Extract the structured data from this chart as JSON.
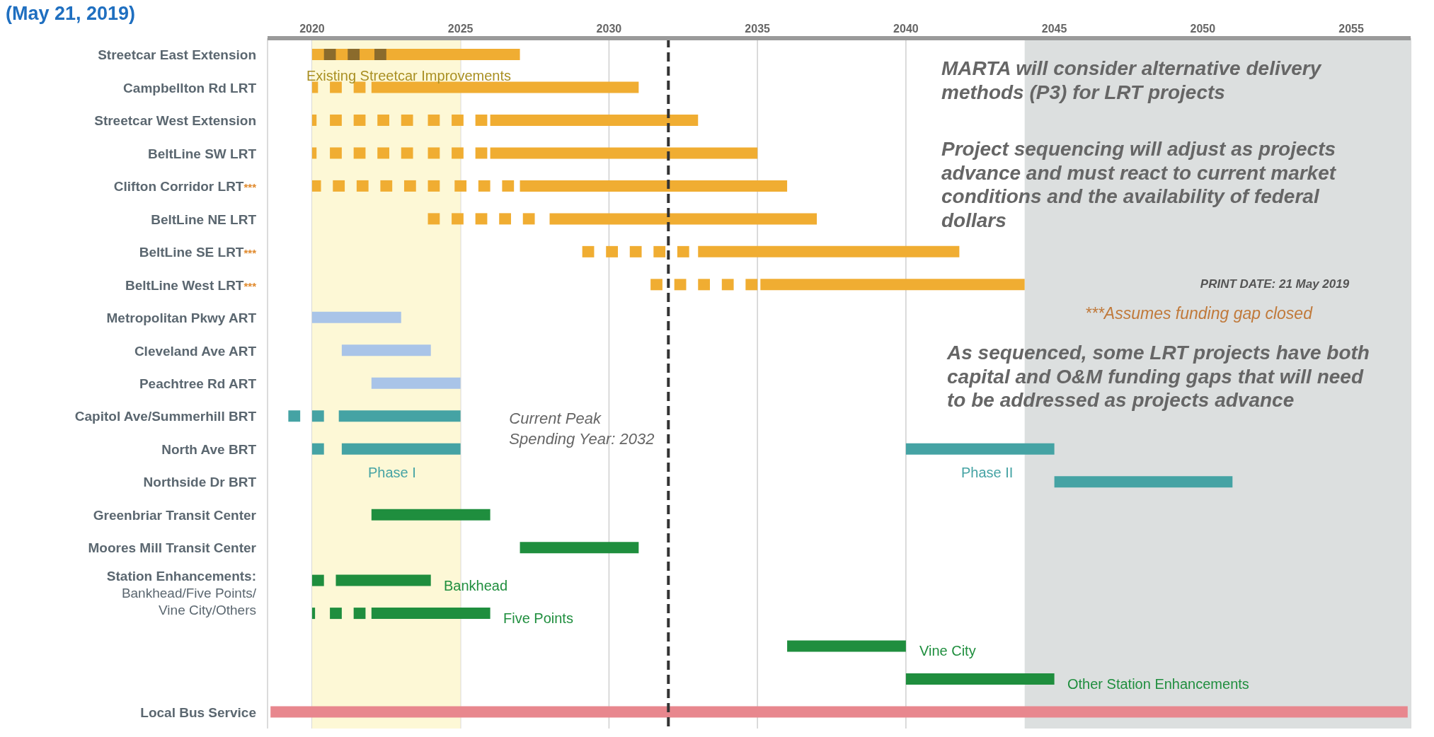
{
  "chart_data": {
    "type": "bar",
    "orientation": "horizontal",
    "title": "(May 21, 2019)",
    "categories": [
      "Streetcar East Extension",
      "Campbellton Rd LRT",
      "Streetcar West Extension",
      "BeltLine SW LRT",
      "Clifton Corridor LRT***",
      "BeltLine NE LRT",
      "BeltLine SE LRT***",
      "BeltLine West LRT***",
      "Metropolitan Pkwy ART",
      "Cleveland Ave ART",
      "Peachtree Rd ART",
      "Capitol Ave/Summerhill BRT",
      "North Ave BRT",
      "Northside Dr BRT",
      "Greenbriar Transit Center",
      "Moores Mill Transit Center",
      "Station Enhancements: Bankhead/Five Points/ Vine City/Others",
      null,
      null,
      null,
      "Local Bus Service"
    ],
    "series": [
      {
        "base": [
          2020,
          2022,
          2026,
          2026,
          2027,
          2028,
          2033,
          2035.1,
          2020,
          2021,
          2022,
          2020.9,
          2021,
          2045,
          2022,
          2027,
          2020.8,
          2022,
          2036,
          2040,
          2018.6
        ],
        "values": [
          7,
          9,
          7,
          9,
          9,
          9,
          8.8,
          8.9,
          3,
          3,
          3,
          4.1,
          4,
          6,
          4,
          4,
          3.2,
          4,
          4,
          5,
          38.3
        ],
        "colors": [
          "#f0ad32",
          "#f0ad32",
          "#f0ad32",
          "#f0ad32",
          "#f0ad32",
          "#f0ad32",
          "#f0ad32",
          "#f0ad32",
          "#a9c4e8",
          "#a9c4e8",
          "#a9c4e8",
          "#45a3a4",
          "#45a3a4",
          "#45a3a4",
          "#1f8e3e",
          "#1f8e3e",
          "#1f8e3e",
          "#1f8e3e",
          "#1f8e3e",
          "#1f8e3e",
          "#e8878e"
        ]
      },
      {
        "base": [
          null,
          null,
          null,
          null,
          null,
          null,
          null,
          null,
          null,
          null,
          null,
          null,
          2040,
          null,
          null,
          null,
          null,
          null,
          null,
          null,
          null
        ],
        "values": [
          null,
          null,
          null,
          null,
          null,
          null,
          null,
          null,
          null,
          null,
          null,
          null,
          5,
          null,
          null,
          null,
          null,
          null,
          null,
          null,
          null
        ],
        "colors": [
          "#45a3a4",
          "#45a3a4",
          "#45a3a4",
          "#45a3a4",
          "#45a3a4",
          "#45a3a4",
          "#45a3a4",
          "#45a3a4",
          "#45a3a4",
          "#45a3a4",
          "#45a3a4",
          "#45a3a4",
          "#45a3a4",
          "#45a3a4",
          "#45a3a4",
          "#45a3a4",
          "#45a3a4",
          "#45a3a4",
          "#45a3a4",
          "#45a3a4",
          "#45a3a4"
        ]
      },
      {
        "base": [
          2020.4,
          2020,
          2020,
          2020,
          2020,
          2023.9,
          2029.1,
          2031.4,
          null,
          null,
          null,
          2019.2,
          2020,
          null,
          null,
          null,
          2020,
          2020,
          null,
          null,
          null
        ],
        "values": [
          0.4,
          0.2,
          0.15,
          0.15,
          0.3,
          0.4,
          0.4,
          0.4,
          null,
          null,
          null,
          0.4,
          0.4,
          null,
          null,
          null,
          0.4,
          0.1,
          null,
          null,
          null
        ],
        "colors": [
          "#8b6b2c",
          "#f0ad32",
          "#f0ad32",
          "#f0ad32",
          "#f0ad32",
          "#f0ad32",
          "#f0ad32",
          "#f0ad32",
          "#a9c4e8",
          "#a9c4e8",
          "#a9c4e8",
          "#45a3a4",
          "#45a3a4",
          "#45a3a4",
          "#1f8e3e",
          "#1f8e3e",
          "#1f8e3e",
          "#1f8e3e",
          "#1f8e3e",
          "#1f8e3e",
          "#e8878e"
        ]
      },
      {
        "base": [
          2021.2,
          2020.6,
          2020.6,
          2020.6,
          2020.7,
          2024.7,
          2029.9,
          2032.2,
          null,
          null,
          null,
          2020,
          null,
          null,
          null,
          null,
          null,
          2020.6,
          null,
          null,
          null
        ],
        "values": [
          0.4,
          0.4,
          0.4,
          0.4,
          0.4,
          0.4,
          0.4,
          0.4,
          null,
          null,
          null,
          0.4,
          null,
          null,
          null,
          null,
          null,
          0.4,
          null,
          null,
          null
        ],
        "colors": [
          "#8b6b2c",
          "#f0ad32",
          "#f0ad32",
          "#f0ad32",
          "#f0ad32",
          "#f0ad32",
          "#f0ad32",
          "#f0ad32",
          "#a9c4e8",
          "#a9c4e8",
          "#a9c4e8",
          "#45a3a4",
          "#45a3a4",
          "#45a3a4",
          "#1f8e3e",
          "#1f8e3e",
          "#1f8e3e",
          "#1f8e3e",
          "#1f8e3e",
          "#1f8e3e",
          "#e8878e"
        ]
      },
      {
        "base": [
          2022.1,
          2021.4,
          2021.4,
          2021.4,
          2021.5,
          2025.5,
          2030.7,
          2033,
          null,
          null,
          null,
          null,
          null,
          null,
          null,
          null,
          null,
          2021.4,
          null,
          null,
          null
        ],
        "values": [
          0.4,
          0.4,
          0.4,
          0.4,
          0.4,
          0.4,
          0.4,
          0.4,
          null,
          null,
          null,
          null,
          null,
          null,
          null,
          null,
          null,
          0.4,
          null,
          null,
          null
        ],
        "colors": [
          "#8b6b2c",
          "#f0ad32",
          "#f0ad32",
          "#f0ad32",
          "#f0ad32",
          "#f0ad32",
          "#f0ad32",
          "#f0ad32",
          "#a9c4e8",
          "#a9c4e8",
          "#a9c4e8",
          "#45a3a4",
          "#45a3a4",
          "#45a3a4",
          "#1f8e3e",
          "#1f8e3e",
          "#1f8e3e",
          "#1f8e3e",
          "#1f8e3e",
          "#1f8e3e",
          "#e8878e"
        ]
      },
      {
        "base": [
          null,
          null,
          2022.2,
          2022.2,
          2022.3,
          2026.3,
          2031.5,
          2033.8,
          null,
          null,
          null,
          null,
          null,
          null,
          null,
          null,
          null,
          null,
          null,
          null,
          null
        ],
        "values": [
          null,
          null,
          0.4,
          0.4,
          0.4,
          0.4,
          0.4,
          0.4,
          null,
          null,
          null,
          null,
          null,
          null,
          null,
          null,
          null,
          null,
          null,
          null,
          null
        ],
        "colors": [
          "#8b6b2c",
          "#f0ad32",
          "#f0ad32",
          "#f0ad32",
          "#f0ad32",
          "#f0ad32",
          "#f0ad32",
          "#f0ad32",
          "#a9c4e8",
          "#a9c4e8",
          "#a9c4e8",
          "#45a3a4",
          "#45a3a4",
          "#45a3a4",
          "#1f8e3e",
          "#1f8e3e",
          "#1f8e3e",
          "#1f8e3e",
          "#1f8e3e",
          "#1f8e3e",
          "#e8878e"
        ]
      },
      {
        "base": [
          null,
          null,
          2023,
          2023,
          2023.1,
          2027.1,
          2032.3,
          2034.6,
          null,
          null,
          null,
          null,
          null,
          null,
          null,
          null,
          null,
          null,
          null,
          null,
          null
        ],
        "values": [
          null,
          null,
          0.4,
          0.4,
          0.4,
          0.4,
          0.4,
          0.4,
          null,
          null,
          null,
          null,
          null,
          null,
          null,
          null,
          null,
          null,
          null,
          null,
          null
        ],
        "colors": [
          "#8b6b2c",
          "#f0ad32",
          "#f0ad32",
          "#f0ad32",
          "#f0ad32",
          "#f0ad32",
          "#f0ad32",
          "#f0ad32",
          "#a9c4e8",
          "#a9c4e8",
          "#a9c4e8",
          "#45a3a4",
          "#45a3a4",
          "#45a3a4",
          "#1f8e3e",
          "#1f8e3e",
          "#1f8e3e",
          "#1f8e3e",
          "#1f8e3e",
          "#1f8e3e",
          "#e8878e"
        ]
      },
      {
        "base": [
          null,
          null,
          2023.9,
          2023.9,
          2023.9,
          null,
          null,
          null,
          null,
          null,
          null,
          null,
          null,
          null,
          null,
          null,
          null,
          null,
          null,
          null,
          null
        ],
        "values": [
          null,
          null,
          0.4,
          0.4,
          0.4,
          null,
          null,
          null,
          null,
          null,
          null,
          null,
          null,
          null,
          null,
          null,
          null,
          null,
          null,
          null,
          null
        ],
        "colors": [
          "#8b6b2c",
          "#f0ad32",
          "#f0ad32",
          "#f0ad32",
          "#f0ad32",
          "#f0ad32",
          "#f0ad32",
          "#f0ad32",
          "#a9c4e8",
          "#a9c4e8",
          "#a9c4e8",
          "#45a3a4",
          "#45a3a4",
          "#45a3a4",
          "#1f8e3e",
          "#1f8e3e",
          "#1f8e3e",
          "#1f8e3e",
          "#1f8e3e",
          "#1f8e3e",
          "#e8878e"
        ]
      },
      {
        "base": [
          null,
          null,
          2024.7,
          2024.7,
          2024.8,
          null,
          null,
          null,
          null,
          null,
          null,
          null,
          null,
          null,
          null,
          null,
          null,
          null,
          null,
          null,
          null
        ],
        "values": [
          null,
          null,
          0.4,
          0.4,
          0.4,
          null,
          null,
          null,
          null,
          null,
          null,
          null,
          null,
          null,
          null,
          null,
          null,
          null,
          null,
          null,
          null
        ],
        "colors": [
          "#8b6b2c",
          "#f0ad32",
          "#f0ad32",
          "#f0ad32",
          "#f0ad32",
          "#f0ad32",
          "#f0ad32",
          "#f0ad32",
          "#a9c4e8",
          "#a9c4e8",
          "#a9c4e8",
          "#45a3a4",
          "#45a3a4",
          "#45a3a4",
          "#1f8e3e",
          "#1f8e3e",
          "#1f8e3e",
          "#1f8e3e",
          "#1f8e3e",
          "#1f8e3e",
          "#e8878e"
        ]
      },
      {
        "base": [
          null,
          null,
          2025.5,
          2025.5,
          2025.6,
          null,
          null,
          null,
          null,
          null,
          null,
          null,
          null,
          null,
          null,
          null,
          null,
          null,
          null,
          null,
          null
        ],
        "values": [
          null,
          null,
          0.4,
          0.4,
          0.4,
          null,
          null,
          null,
          null,
          null,
          null,
          null,
          null,
          null,
          null,
          null,
          null,
          null,
          null,
          null,
          null
        ],
        "colors": [
          "#8b6b2c",
          "#f0ad32",
          "#f0ad32",
          "#f0ad32",
          "#f0ad32",
          "#f0ad32",
          "#f0ad32",
          "#f0ad32",
          "#a9c4e8",
          "#a9c4e8",
          "#a9c4e8",
          "#45a3a4",
          "#45a3a4",
          "#45a3a4",
          "#1f8e3e",
          "#1f8e3e",
          "#1f8e3e",
          "#1f8e3e",
          "#1f8e3e",
          "#1f8e3e",
          "#e8878e"
        ]
      },
      {
        "base": [
          null,
          null,
          null,
          null,
          2026.4,
          null,
          null,
          null,
          null,
          null,
          null,
          null,
          null,
          null,
          null,
          null,
          null,
          null,
          null,
          null,
          null
        ],
        "values": [
          null,
          null,
          null,
          null,
          0.4,
          null,
          null,
          null,
          null,
          null,
          null,
          null,
          null,
          null,
          null,
          null,
          null,
          null,
          null,
          null,
          null
        ],
        "colors": [
          "#8b6b2c",
          "#f0ad32",
          "#f0ad32",
          "#f0ad32",
          "#f0ad32",
          "#f0ad32",
          "#f0ad32",
          "#f0ad32",
          "#a9c4e8",
          "#a9c4e8",
          "#a9c4e8",
          "#45a3a4",
          "#45a3a4",
          "#45a3a4",
          "#1f8e3e",
          "#1f8e3e",
          "#1f8e3e",
          "#1f8e3e",
          "#1f8e3e",
          "#1f8e3e",
          "#e8878e"
        ]
      }
    ],
    "xlim": [
      2018.5,
      2057
    ],
    "xticks": [
      2020,
      2025,
      2030,
      2035,
      2040,
      2045,
      2050,
      2055
    ],
    "grid": "x",
    "ref_lines": [
      {
        "axis": "x",
        "value": 2032,
        "label": "Current Peak Spending Year: 2032",
        "color": "#333333",
        "line_style": "dashed"
      }
    ],
    "bands": [
      {
        "axis": "x",
        "from": 2020,
        "to": 2025,
        "color": "#fdf8d6"
      },
      {
        "axis": "x",
        "from": 2044,
        "to": 2057,
        "color": "#dcdfdf"
      }
    ],
    "annotations": [
      "MARTA will consider alternative delivery methods (P3) for LRT projects",
      "Project sequencing will adjust as projects advance and must react to current market conditions and the availability of federal dollars",
      "PRINT DATE: 21 May 2019",
      "***Assumes funding gap closed",
      "As sequenced, some LRT projects have both capital and O&M funding gaps that will need to be addressed as projects advance",
      "Existing Streetcar Improvements",
      "Phase I",
      "Phase II",
      "Bankhead",
      "Five Points",
      "Vine City",
      "Other Station Enhancements"
    ]
  }
}
